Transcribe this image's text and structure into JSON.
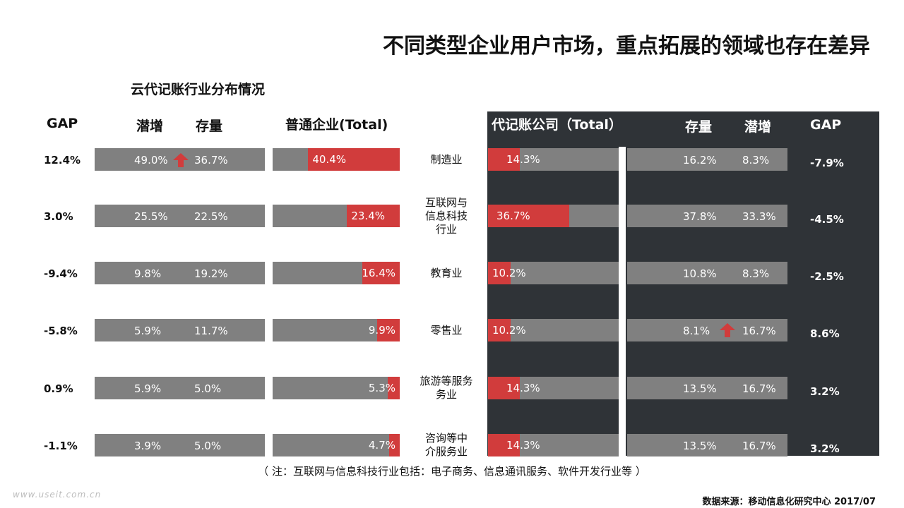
{
  "title": "不同类型企业用户市场，重点拓展的领域也存在差异",
  "note": "（ 注：互联网与信息科技行业包括：电子商务、信息通讯服务、软件开发行业等 ）",
  "source": "数据来源：移动信息化研究中心 2017/07",
  "watermark": "www.useit.com.cn",
  "colors": {
    "accent": "#d13c3c",
    "bar": "#808080",
    "panel": "#2f3337"
  },
  "chart_data": {
    "type": "bar",
    "title": "云代记账行业分布情况",
    "categories": [
      "制造业",
      "互联网与信息科技行业",
      "教育业",
      "零售业",
      "旅游等服务业",
      "咨询等中介服务业"
    ],
    "category_lines": [
      [
        "制造业"
      ],
      [
        "互联网与",
        "信息科技",
        "行业"
      ],
      [
        "教育业"
      ],
      [
        "零售业"
      ],
      [
        "旅游等服务",
        "务业"
      ],
      [
        "咨询等中",
        "介服务业"
      ]
    ],
    "headers": {
      "left_gap": "GAP",
      "left_potential": "潜增",
      "left_stock": "存量",
      "left_total": "普通企业(Total)",
      "right_total": "代记账公司（Total）",
      "right_stock": "存量",
      "right_potential": "潜增",
      "right_gap": "GAP"
    },
    "series": [
      {
        "group": "普通企业",
        "gap": [
          "12.4%",
          "3.0%",
          "-9.4%",
          "-5.8%",
          "0.9%",
          "-1.1%"
        ],
        "potential": [
          "49.0%",
          "25.5%",
          "9.8%",
          "5.9%",
          "5.9%",
          "3.9%"
        ],
        "stock": [
          "36.7%",
          "22.5%",
          "19.2%",
          "11.7%",
          "5.0%",
          "5.0%"
        ],
        "total": [
          40.4,
          23.4,
          16.4,
          9.9,
          5.3,
          4.7
        ],
        "total_labels": [
          "40.4%",
          "23.4%",
          "16.4%",
          "9.9%",
          "5.3%",
          "4.7%"
        ]
      },
      {
        "group": "代记账公司",
        "total": [
          14.3,
          36.7,
          10.2,
          10.2,
          14.3,
          14.3
        ],
        "total_labels": [
          "14.3%",
          "36.7%",
          "10.2%",
          "10.2%",
          "14.3%",
          "14.3%"
        ],
        "stock": [
          "16.2%",
          "37.8%",
          "10.8%",
          "8.1%",
          "13.5%",
          "13.5%"
        ],
        "potential": [
          "8.3%",
          "33.3%",
          "8.3%",
          "16.7%",
          "16.7%",
          "16.7%"
        ],
        "gap": [
          "-7.9%",
          "-4.5%",
          "-2.5%",
          "8.6%",
          "3.2%",
          "3.2%"
        ]
      }
    ],
    "highlight_arrows": [
      {
        "group": "普通企业",
        "category": "制造业"
      },
      {
        "group": "代记账公司",
        "category": "零售业"
      }
    ]
  }
}
